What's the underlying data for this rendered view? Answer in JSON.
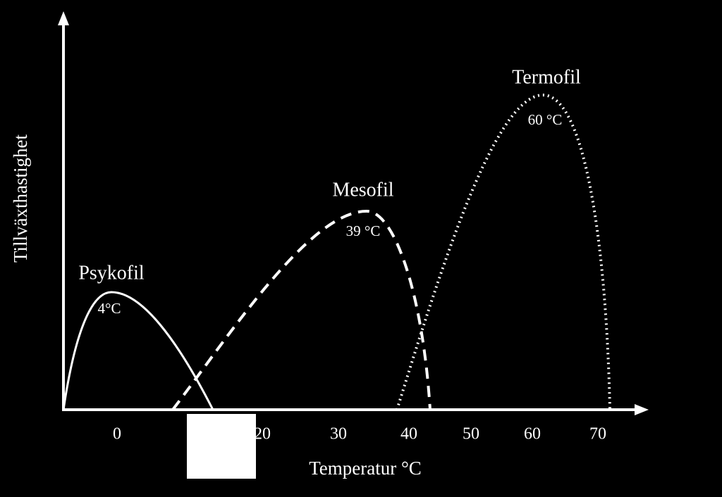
{
  "y_axis_label": "Tillväxthastighet",
  "x_axis_label": "Temperatur °C",
  "x_ticks": [
    "0",
    "20",
    "30",
    "40",
    "50",
    "60",
    "70"
  ],
  "curves": [
    {
      "name": "Psykofil",
      "optimum": "4°C"
    },
    {
      "name": "Mesofil",
      "optimum": "39 °C"
    },
    {
      "name": "Termofil",
      "optimum": "60 °C"
    }
  ]
}
